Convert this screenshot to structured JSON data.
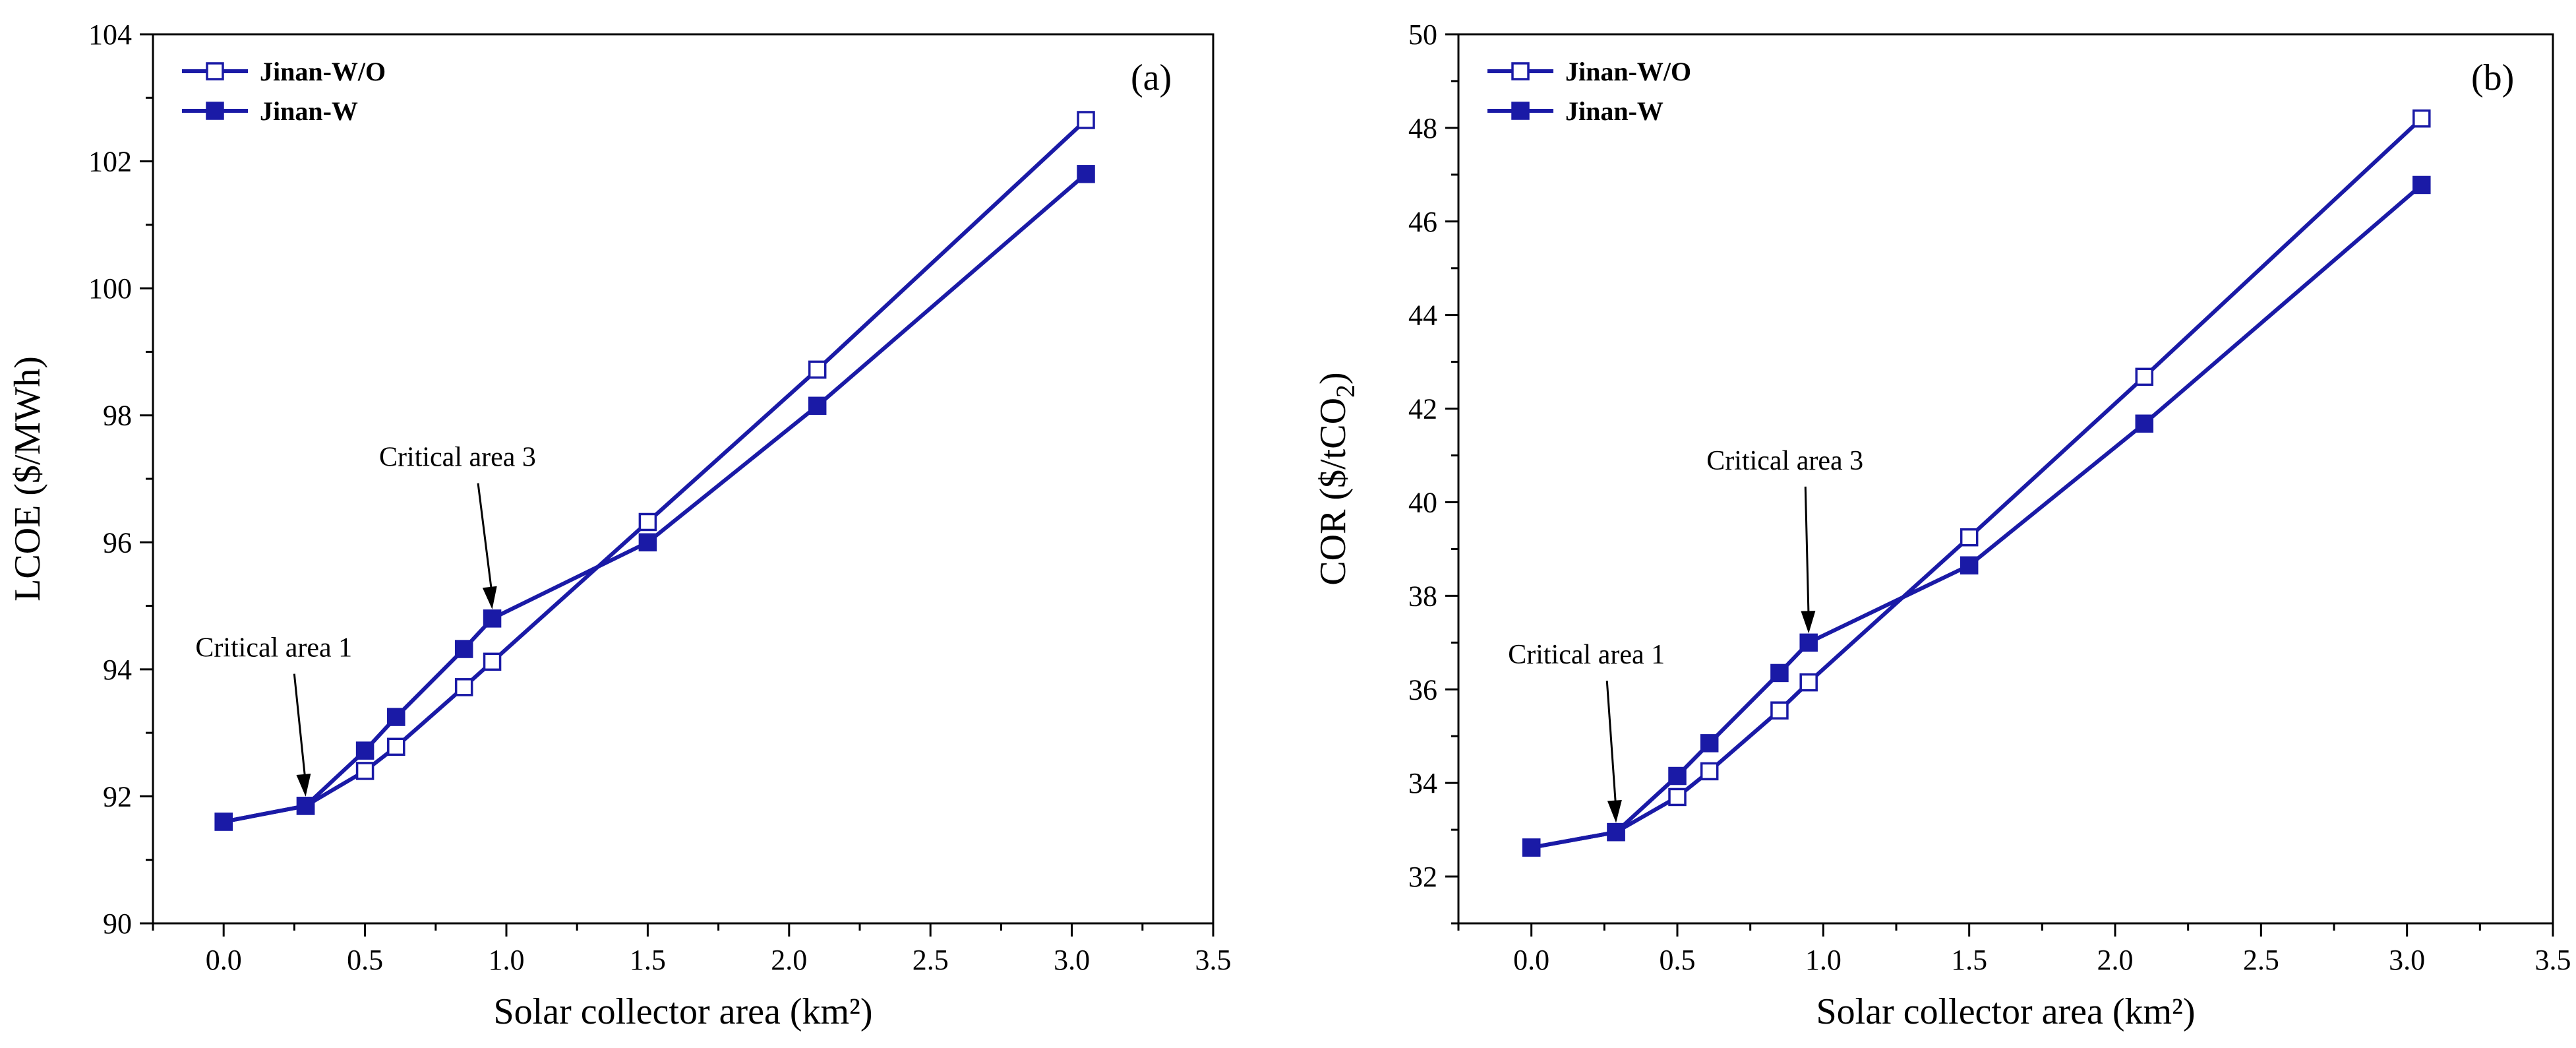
{
  "chart_data": [
    {
      "type": "line",
      "panel_label": "(a)",
      "xlabel": "Solar collector area (km²)",
      "ylabel": "LCOE ($/MWh)",
      "xlim": [
        -0.25,
        3.5
      ],
      "ylim": [
        90,
        104
      ],
      "xticks": [
        0.0,
        0.5,
        1.0,
        1.5,
        2.0,
        2.5,
        3.0,
        3.5
      ],
      "xtick_labels": [
        "0.0",
        "0.5",
        "1.0",
        "1.5",
        "2.0",
        "2.5",
        "3.0",
        "3.5"
      ],
      "yticks": [
        90,
        92,
        94,
        96,
        98,
        100,
        102,
        104
      ],
      "ytick_labels": [
        "90",
        "92",
        "94",
        "96",
        "98",
        "100",
        "102",
        "104"
      ],
      "legend_position": "top-left",
      "series": [
        {
          "name": "Jinan-W/O",
          "marker": "open-square",
          "color": "#1a1aa6",
          "x": [
            0.0,
            0.29,
            0.5,
            0.61,
            0.85,
            0.95,
            1.5,
            2.1,
            3.05
          ],
          "y": [
            91.6,
            91.85,
            92.4,
            92.78,
            93.72,
            94.12,
            96.32,
            98.72,
            102.65
          ]
        },
        {
          "name": "Jinan-W",
          "marker": "filled-square",
          "color": "#1a1aa6",
          "x": [
            0.0,
            0.29,
            0.5,
            0.61,
            0.85,
            0.95,
            1.5,
            2.1,
            3.05
          ],
          "y": [
            91.6,
            91.85,
            92.72,
            93.25,
            94.32,
            94.8,
            96.0,
            98.15,
            101.8
          ]
        }
      ],
      "annotations": [
        {
          "text": "Critical area 1",
          "x": 0.29,
          "y": 91.85,
          "label_x": -0.1,
          "label_y": 94.2
        },
        {
          "text": "Critical area 3",
          "x": 0.95,
          "y": 94.8,
          "label_x": 0.55,
          "label_y": 97.2
        }
      ]
    },
    {
      "type": "line",
      "panel_label": "(b)",
      "xlabel": "Solar collector area (km²)",
      "ylabel": "COR ($/tCO",
      "ylabel_subscript": "2",
      "ylabel_suffix": ")",
      "xlim": [
        -0.25,
        3.5
      ],
      "ylim": [
        31,
        50
      ],
      "xticks": [
        0.0,
        0.5,
        1.0,
        1.5,
        2.0,
        2.5,
        3.0,
        3.5
      ],
      "xtick_labels": [
        "0.0",
        "0.5",
        "1.0",
        "1.5",
        "2.0",
        "2.5",
        "3.0",
        "3.5"
      ],
      "yticks": [
        32,
        34,
        36,
        38,
        40,
        42,
        44,
        46,
        48,
        50
      ],
      "ytick_labels": [
        "32",
        "34",
        "36",
        "38",
        "40",
        "42",
        "44",
        "46",
        "48",
        "50"
      ],
      "legend_position": "top-left",
      "series": [
        {
          "name": "Jinan-W/O",
          "marker": "open-square",
          "color": "#1a1aa6",
          "x": [
            0.0,
            0.29,
            0.5,
            0.61,
            0.85,
            0.95,
            1.5,
            2.1,
            3.05
          ],
          "y": [
            32.62,
            32.95,
            33.7,
            34.25,
            35.55,
            36.15,
            39.25,
            42.68,
            48.2
          ]
        },
        {
          "name": "Jinan-W",
          "marker": "filled-square",
          "color": "#1a1aa6",
          "x": [
            0.0,
            0.29,
            0.5,
            0.61,
            0.85,
            0.95,
            1.5,
            2.1,
            3.05
          ],
          "y": [
            32.62,
            32.95,
            34.15,
            34.85,
            36.35,
            37.0,
            38.65,
            41.68,
            46.78
          ]
        }
      ],
      "annotations": [
        {
          "text": "Critical area 1",
          "x": 0.29,
          "y": 32.95,
          "label_x": -0.08,
          "label_y": 36.55
        },
        {
          "text": "Critical area 3",
          "x": 0.95,
          "y": 37.0,
          "label_x": 0.6,
          "label_y": 40.7
        }
      ]
    }
  ]
}
